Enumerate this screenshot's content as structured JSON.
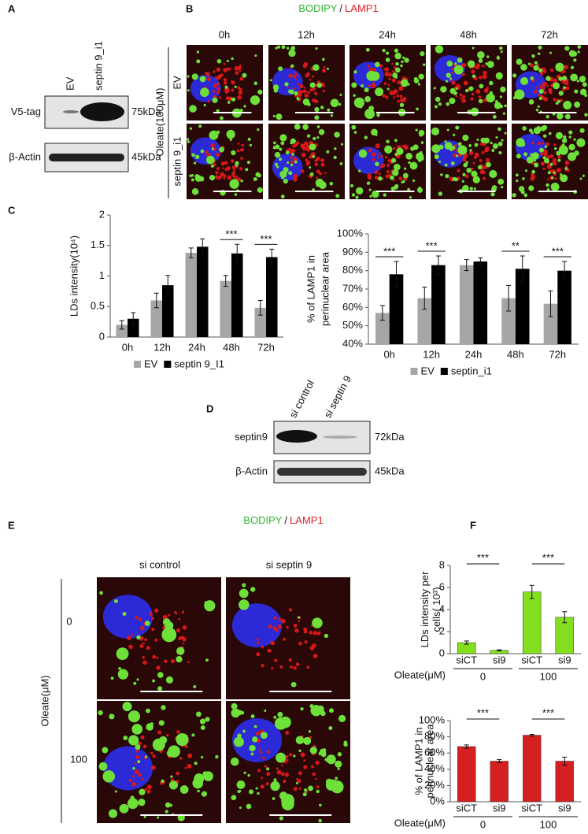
{
  "panels": {
    "A": {
      "label": "A",
      "lanes": [
        "EV",
        "septin 9_i1"
      ],
      "blots": [
        {
          "name": "V5-tag",
          "size": "75kDa"
        },
        {
          "name": "β-Actin",
          "size": "45kDa"
        }
      ]
    },
    "B": {
      "label": "B",
      "stain": [
        "BODIPY",
        "/",
        "LAMP1"
      ],
      "times": [
        "0h",
        "12h",
        "24h",
        "48h",
        "72h"
      ],
      "treatment": "Oleate(100μM)",
      "rows": [
        "EV",
        "septin 9_i1"
      ]
    },
    "C": {
      "label": "C"
    },
    "D": {
      "label": "D",
      "lanes": [
        "si control",
        "si septin 9"
      ],
      "blots": [
        {
          "name": "septin9",
          "size": "72kDa"
        },
        {
          "name": "β-Actin",
          "size": "45kDa"
        }
      ]
    },
    "E": {
      "label": "E",
      "stain": [
        "BODIPY",
        "/",
        "LAMP1"
      ],
      "columns": [
        "si control",
        "si septin 9"
      ],
      "treatment": "Oleate(μM)",
      "rows": [
        "0",
        "100"
      ]
    },
    "F": {
      "label": "F"
    }
  },
  "chart_data": [
    {
      "type": "bar",
      "y_label": [
        "LDs intensity(10⁴)"
      ],
      "categories": [
        "0h",
        "12h",
        "24h",
        "48h",
        "72h"
      ],
      "series": [
        {
          "name": "EV",
          "color": "#a6a6a6",
          "values": [
            0.2,
            0.6,
            1.38,
            0.92,
            0.48
          ],
          "errors": [
            0.07,
            0.12,
            0.08,
            0.09,
            0.12
          ]
        },
        {
          "name": "septin 9_I1",
          "color": "#000000",
          "values": [
            0.3,
            0.85,
            1.48,
            1.37,
            1.31
          ],
          "errors": [
            0.1,
            0.16,
            0.13,
            0.15,
            0.13
          ]
        }
      ],
      "ylim": [
        0,
        2
      ],
      "yticks": [
        0,
        0.5,
        1,
        1.5,
        2
      ],
      "significance": [
        null,
        null,
        null,
        "***",
        "***"
      ],
      "legend": "bottom"
    },
    {
      "type": "bar",
      "y_label": [
        "% of LAMP1 in",
        "perinuclear area"
      ],
      "categories": [
        "0h",
        "12h",
        "24h",
        "48h",
        "72h"
      ],
      "series": [
        {
          "name": "EV",
          "color": "#a6a6a6",
          "values": [
            57,
            65,
            83,
            65,
            62
          ],
          "errors": [
            4,
            6,
            3,
            7,
            7
          ]
        },
        {
          "name": "septin_i1",
          "color": "#000000",
          "values": [
            78,
            83,
            85,
            81,
            80
          ],
          "errors": [
            7,
            5,
            2,
            7,
            5
          ]
        }
      ],
      "ylim": [
        40,
        100
      ],
      "yticks": [
        {
          "value": 40,
          "label": "40%"
        },
        {
          "value": 50,
          "label": "50%"
        },
        {
          "value": 60,
          "label": "60%"
        },
        {
          "value": 70,
          "label": "70%"
        },
        {
          "value": 80,
          "label": "80%"
        },
        {
          "value": 90,
          "label": "90%"
        },
        {
          "value": 100,
          "label": "100%"
        }
      ],
      "significance": [
        "***",
        "***",
        null,
        "**",
        "***"
      ],
      "legend": "bottom"
    },
    {
      "type": "bar",
      "y_label": [
        "LDs intensity per",
        "cells( 10³)"
      ],
      "categories": [
        "siCT",
        "si9",
        "siCT",
        "si9"
      ],
      "series": [
        {
          "color": "#84e01e",
          "values": [
            1.0,
            0.3,
            5.6,
            3.3
          ],
          "errors": [
            0.15,
            0.05,
            0.6,
            0.5
          ]
        }
      ],
      "ylim": [
        0,
        8
      ],
      "yticks": [
        0,
        2,
        4,
        6,
        8
      ],
      "significance": [
        "***",
        null,
        "***",
        null
      ],
      "group_title": "Oleate(μM)",
      "groups": [
        "0",
        "100"
      ]
    },
    {
      "type": "bar",
      "y_label": [
        "% of LAMP1 in",
        "perinuclear area"
      ],
      "categories": [
        "siCT",
        "si9",
        "siCT",
        "si9"
      ],
      "series": [
        {
          "color": "#d42020",
          "values": [
            68,
            50,
            82,
            50
          ],
          "errors": [
            2,
            2,
            1,
            5
          ]
        }
      ],
      "ylim": [
        0,
        100
      ],
      "yticks": [
        {
          "value": 0,
          "label": "0%"
        },
        {
          "value": 20,
          "label": "20%"
        },
        {
          "value": 40,
          "label": "40%"
        },
        {
          "value": 60,
          "label": "60%"
        },
        {
          "value": 80,
          "label": "80%"
        },
        {
          "value": 100,
          "label": "100%"
        }
      ],
      "significance": [
        "***",
        null,
        "***",
        null
      ],
      "group_title": "Oleate(μM)",
      "groups": [
        "0",
        "100"
      ]
    }
  ]
}
